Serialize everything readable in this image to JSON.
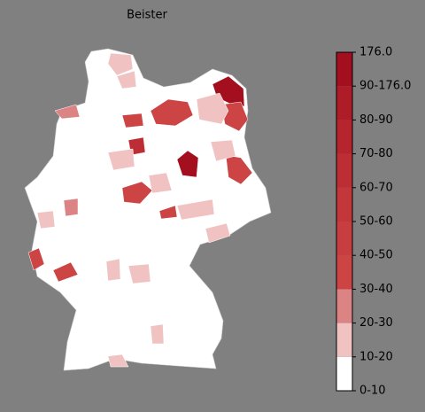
{
  "map": {
    "title": "Beister",
    "legend": {
      "bins": [
        {
          "label": "0-10",
          "color": "#ffffff"
        },
        {
          "label": "10-20",
          "color": "#f0c2c2"
        },
        {
          "label": "20-30",
          "color": "#dc8484"
        },
        {
          "label": "30-40",
          "color": "#cc4444"
        },
        {
          "label": "40-50",
          "color": "#c83e40"
        },
        {
          "label": "50-60",
          "color": "#c3363a"
        },
        {
          "label": "60-70",
          "color": "#bd2e34"
        },
        {
          "label": "70-80",
          "color": "#b6252d"
        },
        {
          "label": "80-90",
          "color": "#ae1c27"
        },
        {
          "label": "90-176.0",
          "color": "#a30f1f"
        },
        {
          "label": "176.0",
          "color": "#a30f1f"
        }
      ]
    }
  }
}
